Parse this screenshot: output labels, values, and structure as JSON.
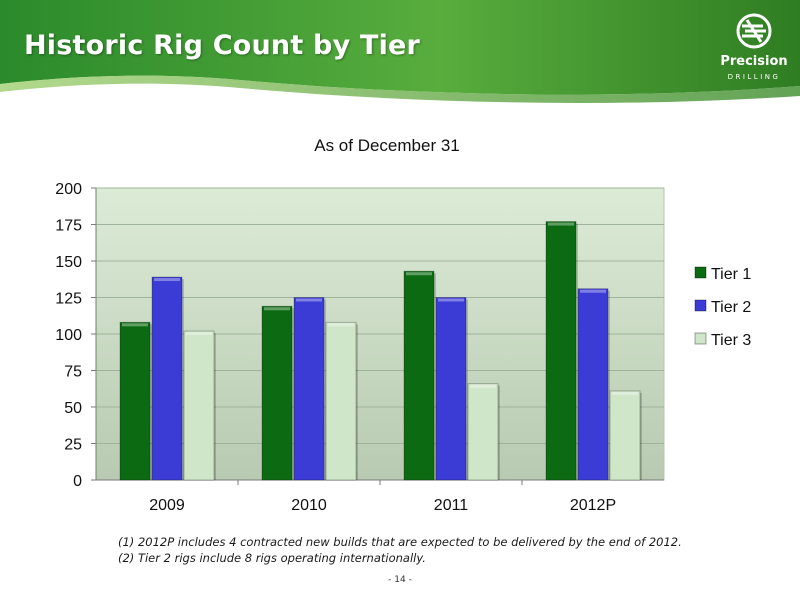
{
  "slide": {
    "title": "Historic Rig Count by Tier",
    "page_number": "- 14 -",
    "footnotes": [
      "(1) 2012P includes 4 contracted new builds that are expected to be delivered by the end of 2012.",
      "(2) Tier 2 rigs include 8 rigs operating internationally."
    ]
  },
  "logo": {
    "name": "Precision",
    "sub": "DRILLING"
  },
  "colors": {
    "header_dark": "#2f8a2f",
    "header_light": "#7cc24c",
    "plot_bg_top": "#dcebd6",
    "plot_bg_bottom": "#b9ccb3",
    "tier1": "#0c6b12",
    "tier2": "#3b3bd6",
    "tier3": "#cfe6c8"
  },
  "chart_data": {
    "type": "bar",
    "title": "As of December 31",
    "xlabel": "",
    "ylabel": "",
    "categories": [
      "2009",
      "2010",
      "2011",
      "2012P"
    ],
    "series": [
      {
        "name": "Tier 1",
        "values": [
          108,
          119,
          143,
          177
        ]
      },
      {
        "name": "Tier 2",
        "values": [
          139,
          125,
          125,
          131
        ]
      },
      {
        "name": "Tier 3",
        "values": [
          102,
          108,
          66,
          61
        ]
      }
    ],
    "ylim": [
      0,
      200
    ],
    "yticks": [
      0,
      25,
      50,
      75,
      100,
      125,
      150,
      175,
      200
    ],
    "grid": true,
    "legend": "right"
  }
}
